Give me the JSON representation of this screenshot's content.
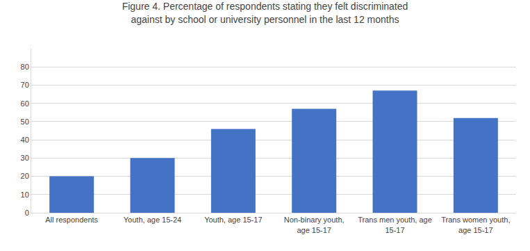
{
  "chart_data": {
    "type": "bar",
    "title": "Figure 4. Percentage of respondents stating they felt discriminated\nagainst by school or university personnel in the last 12 months",
    "categories": [
      "All respondents",
      "Youth, age 15-24",
      "Youth, age 15-17",
      "Non-binary youth,\nage 15-17",
      "Trans men youth, age\n15-17",
      "Trans women youth,\nage 15-17"
    ],
    "values": [
      20,
      30,
      46,
      57,
      67,
      52
    ],
    "color": "#4472C4",
    "ylim": [
      0,
      90
    ],
    "yticks": [
      0,
      10,
      20,
      30,
      40,
      50,
      60,
      70,
      80
    ],
    "grid": true
  }
}
